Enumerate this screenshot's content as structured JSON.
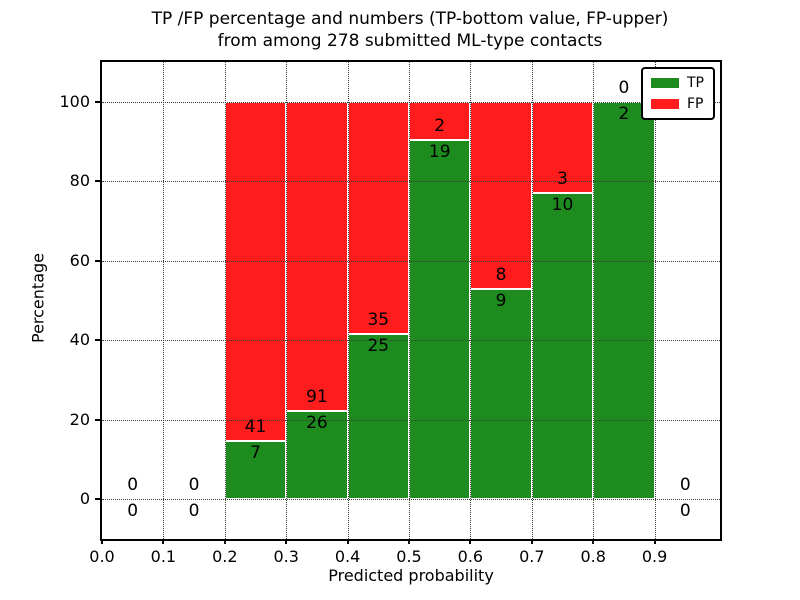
{
  "chart": {
    "title_line1": "TP /FP percentage and numbers (TP-bottom value, FP-upper)",
    "title_line2": "from among 278 submitted ML-type contacts",
    "xlabel": "Predicted probability",
    "ylabel": "Percentage"
  },
  "chart_data": {
    "type": "bar",
    "subtype": "stacked-percentage",
    "title": "TP /FP percentage and numbers (TP-bottom value, FP-upper)\nfrom among 278 submitted ML-type contacts",
    "xlabel": "Predicted probability",
    "ylabel": "Percentage",
    "total_contacts": 278,
    "grid": "dotted",
    "xlim": [
      0,
      1.0065
    ],
    "ylim": [
      -10,
      110
    ],
    "xticks": [
      {
        "value": 0.0,
        "label": "0.0"
      },
      {
        "value": 0.1,
        "label": "0.1"
      },
      {
        "value": 0.2,
        "label": "0.2"
      },
      {
        "value": 0.3,
        "label": "0.3"
      },
      {
        "value": 0.4,
        "label": "0.4"
      },
      {
        "value": 0.5,
        "label": "0.5"
      },
      {
        "value": 0.6,
        "label": "0.6"
      },
      {
        "value": 0.7,
        "label": "0.7"
      },
      {
        "value": 0.8,
        "label": "0.8"
      },
      {
        "value": 0.9,
        "label": "0.9"
      }
    ],
    "yticks": [
      {
        "value": 0,
        "label": "0"
      },
      {
        "value": 20,
        "label": "20"
      },
      {
        "value": 40,
        "label": "40"
      },
      {
        "value": 60,
        "label": "60"
      },
      {
        "value": 80,
        "label": "80"
      },
      {
        "value": 100,
        "label": "100"
      }
    ],
    "legend": {
      "position": "upper-right",
      "entries": [
        {
          "label": "TP",
          "color": "#1e8b1e"
        },
        {
          "label": "FP",
          "color": "#ff1c1c"
        }
      ]
    },
    "series": [
      {
        "name": "TP",
        "color": "#1e8b1e",
        "counts": [
          0,
          0,
          7,
          26,
          25,
          19,
          9,
          10,
          2,
          0
        ]
      },
      {
        "name": "FP",
        "color": "#ff1c1c",
        "counts": [
          0,
          0,
          41,
          91,
          35,
          2,
          8,
          3,
          0,
          0
        ]
      }
    ],
    "bins": [
      {
        "x0": 0.0,
        "x1": 0.1,
        "tp": 0,
        "fp": 0,
        "tp_percent": null
      },
      {
        "x0": 0.1,
        "x1": 0.2,
        "tp": 0,
        "fp": 0,
        "tp_percent": null
      },
      {
        "x0": 0.2,
        "x1": 0.3,
        "tp": 7,
        "fp": 41,
        "tp_percent": 14.58
      },
      {
        "x0": 0.3,
        "x1": 0.4,
        "tp": 26,
        "fp": 91,
        "tp_percent": 22.22
      },
      {
        "x0": 0.4,
        "x1": 0.5,
        "tp": 25,
        "fp": 35,
        "tp_percent": 41.67
      },
      {
        "x0": 0.5,
        "x1": 0.6,
        "tp": 19,
        "fp": 2,
        "tp_percent": 90.48
      },
      {
        "x0": 0.6,
        "x1": 0.7,
        "tp": 9,
        "fp": 8,
        "tp_percent": 52.94
      },
      {
        "x0": 0.7,
        "x1": 0.8,
        "tp": 10,
        "fp": 3,
        "tp_percent": 76.92
      },
      {
        "x0": 0.8,
        "x1": 0.9,
        "tp": 2,
        "fp": 0,
        "tp_percent": 100.0
      },
      {
        "x0": 0.9,
        "x1": 1.0,
        "tp": 0,
        "fp": 0,
        "tp_percent": null
      }
    ]
  },
  "colors": {
    "tp": "#1e8b1e",
    "fp": "#ff1c1c",
    "grid": "#3a3a3a",
    "spine": "#000000",
    "background": "#ffffff",
    "text": "#000000"
  }
}
